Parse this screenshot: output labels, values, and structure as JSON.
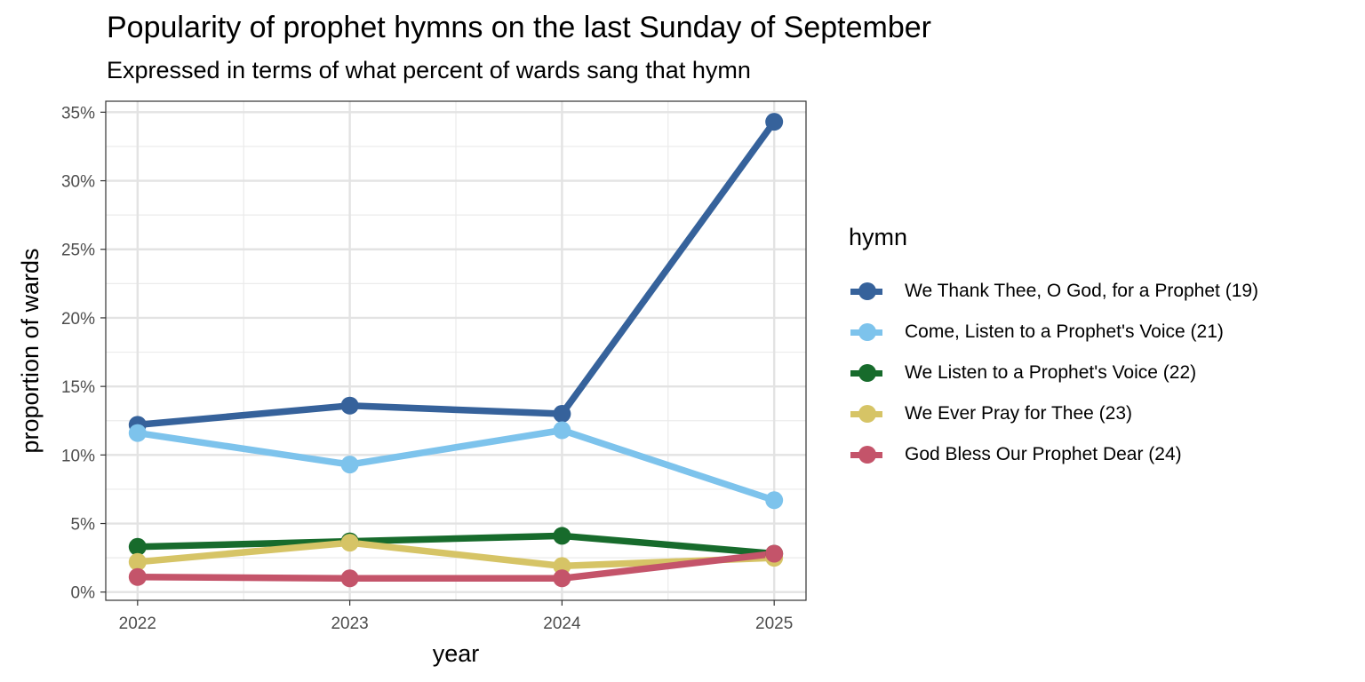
{
  "chart_data": {
    "type": "line",
    "title": "Popularity of prophet hymns on the last Sunday of September",
    "subtitle": "Expressed in terms of what percent of wards sang that hymn",
    "xlabel": "year",
    "ylabel": "proportion of wards",
    "x": [
      2022,
      2023,
      2024,
      2025
    ],
    "x_ticks": [
      "2022",
      "2023",
      "2024",
      "2025"
    ],
    "y_ticks": [
      "0%",
      "5%",
      "10%",
      "15%",
      "20%",
      "25%",
      "30%",
      "35%"
    ],
    "y_tick_values": [
      0,
      5,
      10,
      15,
      20,
      25,
      30,
      35
    ],
    "ylim": [
      -0.6,
      35.8
    ],
    "xlim": [
      2021.85,
      2025.15
    ],
    "grid": true,
    "legend_title": "hymn",
    "legend_position": "right",
    "series": [
      {
        "name": "We Thank Thee, O God, for a Prophet (19)",
        "color": "#36629b",
        "values": [
          12.2,
          13.6,
          13.0,
          34.3
        ]
      },
      {
        "name": "Come, Listen to a Prophet's Voice (21)",
        "color": "#7dc3ec",
        "values": [
          11.6,
          9.3,
          11.8,
          6.7
        ]
      },
      {
        "name": "We Listen to a Prophet's Voice (22)",
        "color": "#176b2c",
        "values": [
          3.3,
          3.7,
          4.1,
          2.8
        ]
      },
      {
        "name": "We Ever Pray for Thee (23)",
        "color": "#d6c466",
        "values": [
          2.2,
          3.6,
          1.9,
          2.5
        ]
      },
      {
        "name": "God Bless Our Prophet Dear (24)",
        "color": "#c4546a",
        "values": [
          1.1,
          1.0,
          1.0,
          2.8
        ]
      }
    ]
  }
}
